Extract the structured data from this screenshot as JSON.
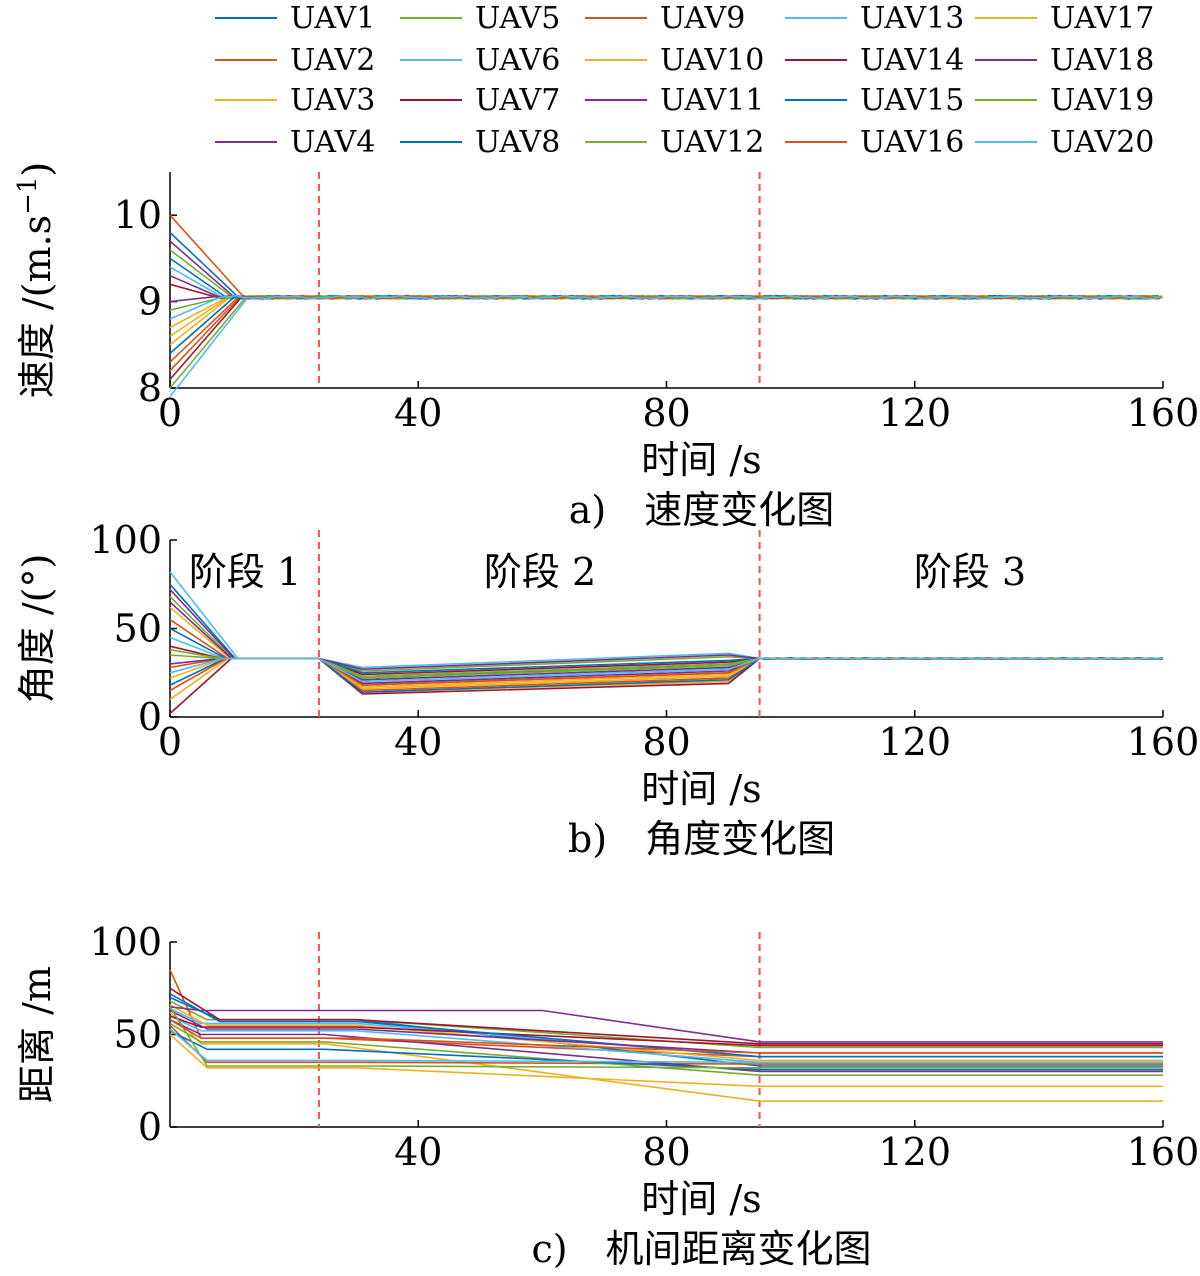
{
  "colors": {
    "UAV1": "#0072BD",
    "UAV2": "#D95319",
    "UAV3": "#EDB120",
    "UAV4": "#7E2F8E",
    "UAV5": "#77AC30",
    "UAV6": "#4DBEEE",
    "UAV7": "#A2142F",
    "UAV8": "#0072BD",
    "UAV9": "#D95319",
    "UAV10": "#EDB120",
    "UAV11": "#7E2F8E",
    "UAV12": "#77AC30",
    "UAV13": "#4DBEEE",
    "UAV14": "#A2142F",
    "UAV15": "#0072BD",
    "UAV16": "#D95319",
    "UAV17": "#EDB120",
    "UAV18": "#7E2F8E",
    "UAV19": "#77AC30",
    "UAV20": "#4DBEEE",
    "phase_line": "#FF4D4D"
  },
  "legend": [
    "UAV1",
    "UAV5",
    "UAV9",
    "UAV13",
    "UAV17",
    "UAV2",
    "UAV6",
    "UAV10",
    "UAV14",
    "UAV18",
    "UAV3",
    "UAV7",
    "UAV11",
    "UAV15",
    "UAV19",
    "UAV4",
    "UAV8",
    "UAV12",
    "UAV16",
    "UAV20"
  ],
  "phase_boundaries_s": [
    24,
    95
  ],
  "chart_data": [
    {
      "type": "line",
      "caption": "a)　速度变化图",
      "xlabel": "时间 /s",
      "ylabel": "速度 /(m.s",
      "ylabel_sup": "−1",
      "ylabel_close": ")",
      "xlim": [
        0,
        160
      ],
      "ylim": [
        8,
        10.5
      ],
      "xticks": [
        0,
        40,
        80,
        120,
        160
      ],
      "yticks": [
        8,
        9,
        10
      ],
      "initial_values": [
        9.8,
        9.6,
        8.3,
        7.9,
        8.5,
        8.2,
        9.4,
        8.7,
        9.2,
        9.0,
        8.6,
        8.1,
        9.7,
        9.5,
        8.9,
        9.3,
        8.4,
        8.0,
        10.0,
        8.8
      ],
      "settle_value": 9.05,
      "final_value": 9.05
    },
    {
      "type": "line",
      "caption": "b)　角度变化图",
      "xlabel": "时间 /s",
      "ylabel": "角度 /(°)",
      "xlim": [
        0,
        160
      ],
      "ylim": [
        0,
        100
      ],
      "xticks": [
        0,
        40,
        80,
        120,
        160
      ],
      "yticks": [
        0,
        50,
        100
      ],
      "stage_labels": [
        "阶段 1",
        "阶段 2",
        "阶段 3"
      ],
      "initial_values": [
        75,
        68,
        28,
        45,
        10,
        55,
        82,
        62,
        40,
        30,
        22,
        2,
        72,
        50,
        35,
        65,
        18,
        38,
        15,
        25
      ],
      "settle_value": 33,
      "phase2_start_values": [
        22,
        26,
        15,
        20,
        14,
        18,
        28,
        17,
        24,
        21,
        16,
        13,
        19,
        25,
        23,
        27,
        14,
        22,
        18,
        20
      ],
      "phase2_end_values": [
        30,
        34,
        22,
        27,
        20,
        25,
        36,
        24,
        31,
        28,
        23,
        19,
        26,
        32,
        30,
        35,
        21,
        29,
        25,
        27
      ],
      "final_value": 33
    },
    {
      "type": "line",
      "caption": "c)　机间距离变化图",
      "xlabel": "时间 /s",
      "ylabel": "距离 /m",
      "xlim": [
        0,
        160
      ],
      "ylim": [
        0,
        100
      ],
      "xticks": [
        40,
        80,
        120,
        160
      ],
      "yticks": [
        0,
        50,
        100
      ],
      "series": [
        {
          "name": "UAV1",
          "values": [
            [
              0,
              70
            ],
            [
              8,
              58
            ],
            [
              30,
              58
            ],
            [
              95,
              33
            ],
            [
              160,
              33
            ]
          ]
        },
        {
          "name": "UAV2",
          "values": [
            [
              0,
              68
            ],
            [
              6,
              58
            ],
            [
              30,
              58
            ],
            [
              95,
              43
            ],
            [
              160,
              43
            ]
          ]
        },
        {
          "name": "UAV3",
          "values": [
            [
              0,
              85
            ],
            [
              5,
              48
            ],
            [
              25,
              48
            ],
            [
              95,
              38
            ],
            [
              160,
              38
            ]
          ]
        },
        {
          "name": "UAV4",
          "values": [
            [
              0,
              60
            ],
            [
              5,
              52
            ],
            [
              30,
              52
            ],
            [
              95,
              35
            ],
            [
              160,
              35
            ]
          ]
        },
        {
          "name": "UAV5",
          "values": [
            [
              0,
              62
            ],
            [
              5,
              45
            ],
            [
              25,
              45
            ],
            [
              95,
              14
            ],
            [
              160,
              14
            ]
          ]
        },
        {
          "name": "UAV6",
          "values": [
            [
              0,
              55
            ],
            [
              6,
              35
            ],
            [
              30,
              35
            ],
            [
              95,
              34
            ],
            [
              160,
              34
            ]
          ]
        },
        {
          "name": "UAV7",
          "values": [
            [
              0,
              64
            ],
            [
              5,
              56
            ],
            [
              30,
              56
            ],
            [
              95,
              38
            ],
            [
              160,
              38
            ]
          ]
        },
        {
          "name": "UAV8",
          "values": [
            [
              0,
              50
            ],
            [
              6,
              32
            ],
            [
              30,
              32
            ],
            [
              95,
              22
            ],
            [
              160,
              22
            ]
          ]
        },
        {
          "name": "UAV9",
          "values": [
            [
              0,
              75
            ],
            [
              8,
              58
            ],
            [
              30,
              58
            ],
            [
              95,
              45
            ],
            [
              160,
              45
            ]
          ]
        },
        {
          "name": "UAV10",
          "values": [
            [
              0,
              58
            ],
            [
              5,
              50
            ],
            [
              25,
              50
            ],
            [
              95,
              30
            ],
            [
              160,
              30
            ]
          ]
        },
        {
          "name": "UAV11",
          "values": [
            [
              0,
              66
            ],
            [
              6,
              55
            ],
            [
              30,
              55
            ],
            [
              95,
              36
            ],
            [
              160,
              36
            ]
          ]
        },
        {
          "name": "UAV12",
          "values": [
            [
              0,
              60
            ],
            [
              5,
              54
            ],
            [
              30,
              54
            ],
            [
              95,
              44
            ],
            [
              160,
              44
            ]
          ]
        },
        {
          "name": "UAV13",
          "values": [
            [
              0,
              65
            ],
            [
              5,
              63
            ],
            [
              60,
              63
            ],
            [
              95,
              46
            ],
            [
              160,
              46
            ]
          ]
        },
        {
          "name": "UAV14",
          "values": [
            [
              0,
              72
            ],
            [
              8,
              57
            ],
            [
              30,
              57
            ],
            [
              95,
              38
            ],
            [
              160,
              38
            ]
          ]
        },
        {
          "name": "UAV15",
          "values": [
            [
              0,
              56
            ],
            [
              5,
              46
            ],
            [
              25,
              46
            ],
            [
              95,
              28
            ],
            [
              160,
              28
            ]
          ]
        },
        {
          "name": "UAV16",
          "values": [
            [
              0,
              63
            ],
            [
              6,
              53
            ],
            [
              30,
              53
            ],
            [
              95,
              40
            ],
            [
              160,
              40
            ]
          ]
        },
        {
          "name": "UAV17",
          "values": [
            [
              0,
              52
            ],
            [
              6,
              42
            ],
            [
              25,
              42
            ],
            [
              95,
              31
            ],
            [
              160,
              31
            ]
          ]
        },
        {
          "name": "UAV18",
          "values": [
            [
              0,
              65
            ],
            [
              6,
              33
            ],
            [
              30,
              33
            ],
            [
              95,
              32
            ],
            [
              160,
              32
            ]
          ]
        },
        {
          "name": "UAV19",
          "values": [
            [
              0,
              58
            ],
            [
              5,
              48
            ],
            [
              30,
              48
            ],
            [
              95,
              40
            ],
            [
              160,
              40
            ]
          ]
        },
        {
          "name": "UAV20",
          "values": [
            [
              0,
              53
            ],
            [
              6,
              36
            ],
            [
              30,
              36
            ],
            [
              95,
              35
            ],
            [
              160,
              35
            ]
          ]
        }
      ]
    }
  ]
}
